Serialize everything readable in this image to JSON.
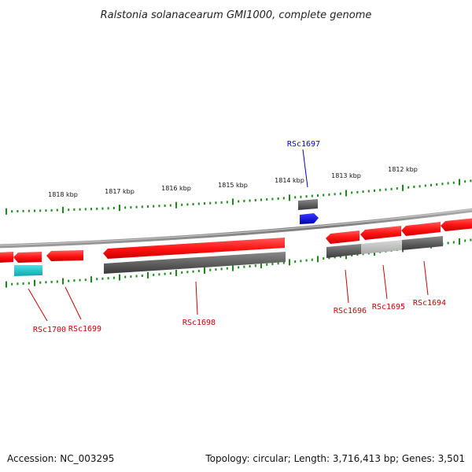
{
  "header": {
    "title": "Ralstonia solanacearum GMI1000, complete genome"
  },
  "footer": {
    "accession": "Accession: NC_003295",
    "summary": "Topology: circular; Length: 3,716,413 bp; Genes: 3,501"
  },
  "colors": {
    "forward_gene": "#ff1a1a",
    "reverse_gene": "#707070",
    "reverse_gene_light": "#c0c0c0",
    "rna_gene": "#0000ee",
    "cyan_feature": "#22c4c8",
    "tick": "#1a8a1a",
    "backbone": "#888888",
    "highlight_label": "#0000cc",
    "gene_label": "#cc0000"
  },
  "scale_labels": [
    {
      "kbp": 1818,
      "label": "1818 kbp"
    },
    {
      "kbp": 1817,
      "label": "1817 kbp"
    },
    {
      "kbp": 1816,
      "label": "1816 kbp"
    },
    {
      "kbp": 1815,
      "label": "1815 kbp"
    },
    {
      "kbp": 1814,
      "label": "1814 kbp"
    },
    {
      "kbp": 1813,
      "label": "1813 kbp"
    },
    {
      "kbp": 1812,
      "label": "1812 kbp"
    }
  ],
  "genes": [
    {
      "label": "RSc1697",
      "highlighted": true
    },
    {
      "label": "RSc1700",
      "highlighted": false
    },
    {
      "label": "RSc1699",
      "highlighted": false
    },
    {
      "label": "RSc1698",
      "highlighted": false
    },
    {
      "label": "RSc1696",
      "highlighted": false
    },
    {
      "label": "RSc1695",
      "highlighted": false
    },
    {
      "label": "RSc1694",
      "highlighted": false
    }
  ]
}
